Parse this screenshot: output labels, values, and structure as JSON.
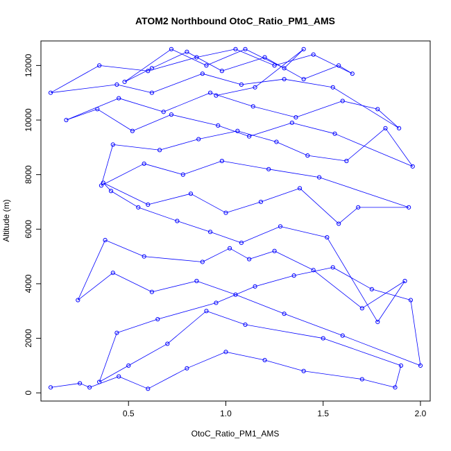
{
  "chart_data": {
    "type": "scatter",
    "title": "ATOM2 Northbound OtoC_Ratio_PM1_AMS",
    "xlabel": "OtoC_Ratio_PM1_AMS",
    "ylabel": "Altitude (m)",
    "xlim": [
      0.05,
      2.05
    ],
    "ylim": [
      -300,
      12900
    ],
    "xticks": [
      0.5,
      1.0,
      1.5,
      2.0
    ],
    "xtick_labels": [
      "0.5",
      "1.0",
      "1.5",
      "2.0"
    ],
    "yticks": [
      0,
      2000,
      4000,
      6000,
      8000,
      10000,
      12000
    ],
    "ytick_labels": [
      "0",
      "2000",
      "4000",
      "6000",
      "8000",
      "10000",
      "12000"
    ],
    "grid": false,
    "legend": "none",
    "marker": "open-circle",
    "connected_by_lines": true,
    "color": "#0000ff",
    "x": [
      0.1,
      0.25,
      0.3,
      0.45,
      0.6,
      0.8,
      1.0,
      1.2,
      1.4,
      1.7,
      1.87,
      1.9,
      1.5,
      1.1,
      0.9,
      0.7,
      0.5,
      0.35,
      0.44,
      0.65,
      0.95,
      1.15,
      1.35,
      1.55,
      1.75,
      1.95,
      2.0,
      1.6,
      1.3,
      1.05,
      0.85,
      0.62,
      0.42,
      0.24,
      0.38,
      0.58,
      0.88,
      1.02,
      1.12,
      1.25,
      1.45,
      1.7,
      1.92,
      1.78,
      1.52,
      1.28,
      1.08,
      0.92,
      0.75,
      0.55,
      0.41,
      0.37,
      0.6,
      0.82,
      1.0,
      1.18,
      1.38,
      1.58,
      1.68,
      1.94,
      1.48,
      1.22,
      0.98,
      0.78,
      0.58,
      0.36,
      0.42,
      0.66,
      0.86,
      1.06,
      1.26,
      1.42,
      1.62,
      1.82,
      1.96,
      1.56,
      1.34,
      1.12,
      0.96,
      0.72,
      0.52,
      0.34,
      0.18,
      0.45,
      0.68,
      0.92,
      1.14,
      1.36,
      1.6,
      1.78,
      1.89,
      1.55,
      1.3,
      1.08,
      0.88,
      0.62,
      0.44,
      0.1,
      0.35,
      0.6,
      0.85,
      1.05,
      1.25,
      1.45,
      1.65,
      1.58,
      1.4,
      1.2,
      0.98,
      0.8,
      0.62,
      0.48,
      0.72,
      0.9,
      1.1,
      1.3,
      1.4,
      1.15,
      0.95
    ],
    "y": [
      200,
      350,
      200,
      600,
      150,
      900,
      1500,
      1200,
      800,
      500,
      200,
      1000,
      2000,
      2500,
      3000,
      1800,
      1000,
      400,
      2200,
      2700,
      3300,
      3900,
      4300,
      4600,
      3800,
      3400,
      1000,
      2100,
      2900,
      3600,
      4100,
      3700,
      4400,
      3400,
      5600,
      5000,
      4800,
      5300,
      4900,
      5200,
      4500,
      3100,
      4100,
      2600,
      5700,
      6100,
      5500,
      5900,
      6300,
      6800,
      7400,
      7700,
      6900,
      7300,
      6600,
      7000,
      7500,
      6200,
      6800,
      6800,
      7900,
      8200,
      8500,
      8000,
      8400,
      7600,
      9100,
      8900,
      9300,
      9600,
      9200,
      8700,
      8500,
      9700,
      8300,
      9500,
      9900,
      9400,
      9800,
      10200,
      9600,
      10400,
      10000,
      10800,
      10300,
      11000,
      10500,
      10100,
      10700,
      10400,
      9700,
      11200,
      11500,
      11300,
      11700,
      11000,
      11300,
      11000,
      12000,
      11800,
      12300,
      12600,
      12000,
      12400,
      11700,
      12000,
      11500,
      12300,
      11800,
      12500,
      11900,
      11400,
      12600,
      12000,
      12600,
      11900,
      12600,
      11200,
      10900
    ]
  }
}
